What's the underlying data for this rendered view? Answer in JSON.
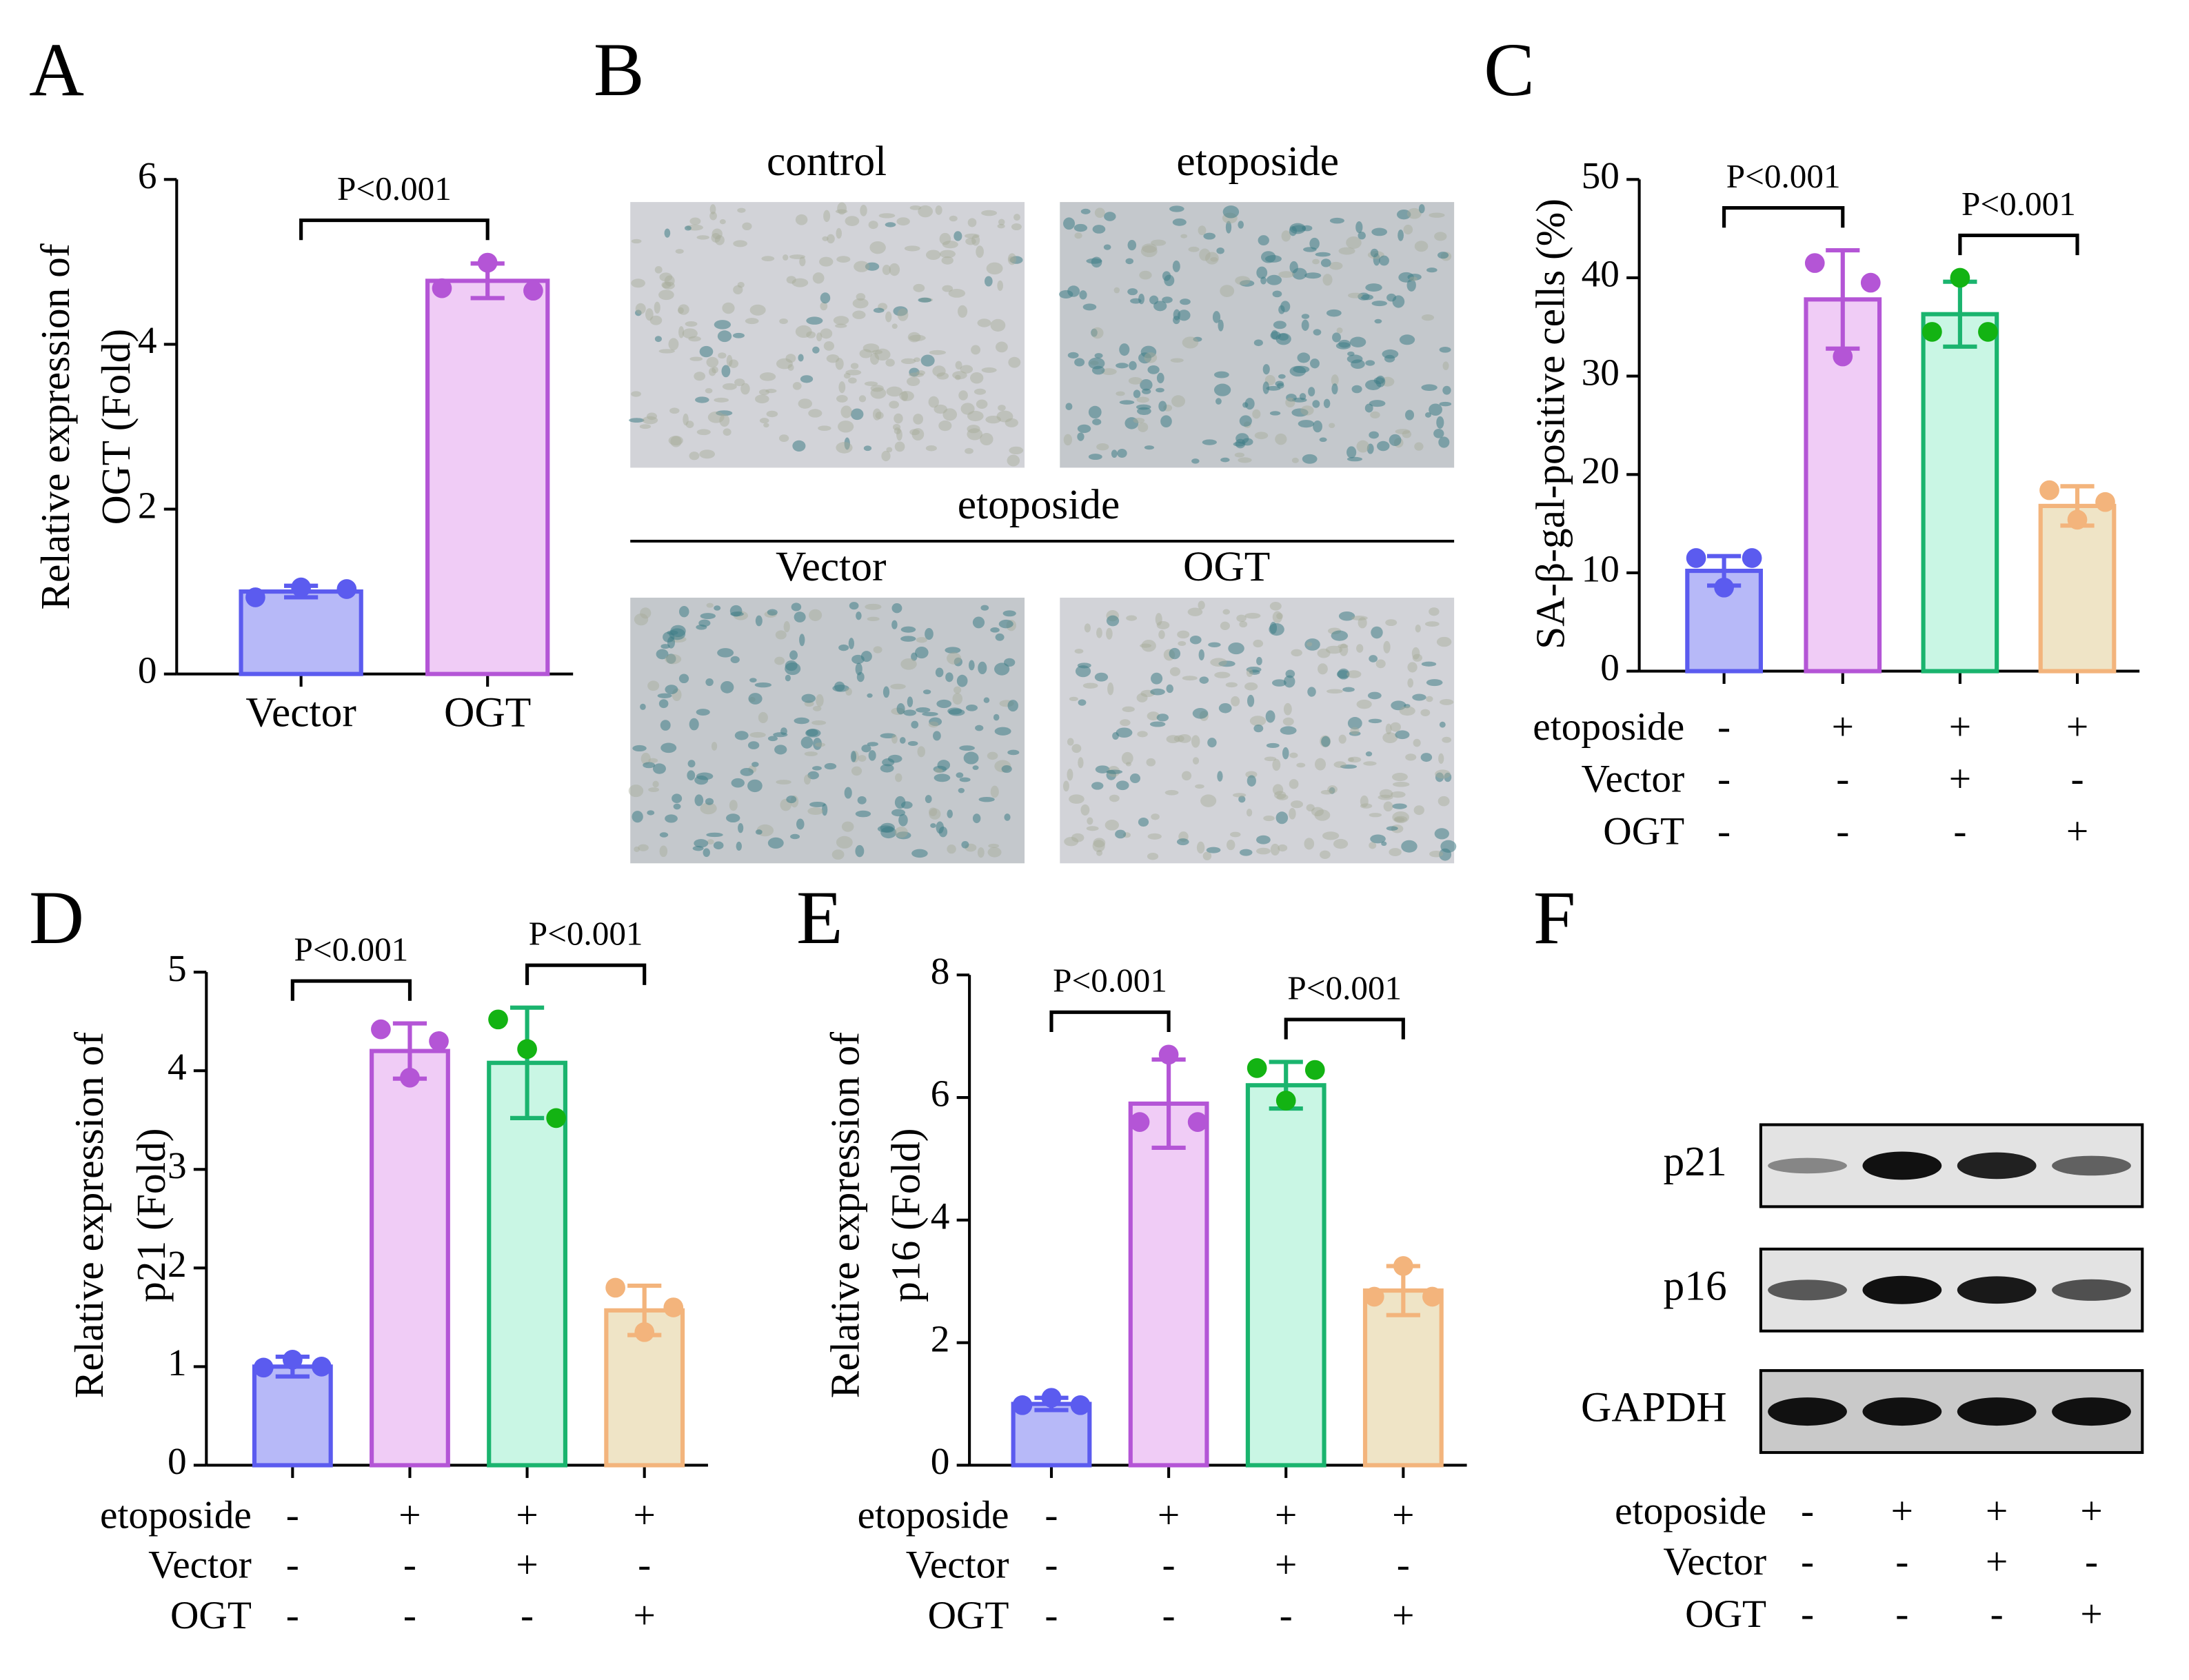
{
  "panel_labels": [
    "A",
    "B",
    "C",
    "D",
    "E",
    "F"
  ],
  "chart_data": [
    {
      "type": "bar",
      "ylabel": [
        "Relative expression of",
        "OGT (Fold)"
      ],
      "categories": [
        "Vector",
        "OGT"
      ],
      "values": [
        1.0,
        4.77
      ],
      "errors": [
        0.07,
        0.21
      ],
      "points": [
        [
          0.93,
          1.05,
          1.03
        ],
        [
          4.68,
          4.99,
          4.65
        ]
      ],
      "colors": {
        "fill": [
          "#b7b9f8",
          "#f0ccf6"
        ],
        "stroke": [
          "#5b5bef",
          "#b455d6"
        ],
        "dot": [
          "#5b5bef",
          "#b455d6"
        ]
      },
      "ylim": [
        0,
        6
      ],
      "yticks": [
        0,
        2,
        4,
        6
      ],
      "annotations": [
        "P<0.001"
      ]
    },
    {
      "type": "bar",
      "ylabel": [
        "SA-β-gal-positive cells (%)"
      ],
      "values": [
        10.2,
        37.8,
        36.3,
        16.8
      ],
      "errors": [
        1.5,
        5.0,
        3.3,
        2.0
      ],
      "points": [
        [
          11.5,
          8.5,
          11.5
        ],
        [
          41.5,
          32.0,
          39.5
        ],
        [
          34.5,
          40.0,
          34.5
        ],
        [
          18.4,
          15.4,
          17.2
        ]
      ],
      "colors": {
        "fill": [
          "#b7b9f8",
          "#f0ccf6",
          "#c9f6e4",
          "#efe4c6"
        ],
        "stroke": [
          "#5b5bef",
          "#b455d6",
          "#1ab46e",
          "#f3b47c"
        ],
        "dot": [
          "#5b5bef",
          "#b455d6",
          "#13b313",
          "#f3b47c"
        ]
      },
      "ylim": [
        0,
        50
      ],
      "yticks": [
        0,
        10,
        20,
        30,
        40,
        50
      ],
      "annotations": [
        "P<0.001",
        "P<0.001"
      ],
      "conditions": [
        {
          "label": "etoposide",
          "values": [
            "-",
            "+",
            "+",
            "+"
          ]
        },
        {
          "label": "Vector",
          "values": [
            "-",
            "-",
            "+",
            "-"
          ]
        },
        {
          "label": "OGT",
          "values": [
            "-",
            "-",
            "-",
            "+"
          ]
        }
      ]
    },
    {
      "type": "bar",
      "ylabel": [
        "Relative expression of",
        "p21 (Fold)"
      ],
      "values": [
        1.0,
        4.2,
        4.08,
        1.57
      ],
      "errors": [
        0.1,
        0.28,
        0.56,
        0.25
      ],
      "points": [
        [
          0.99,
          1.07,
          1.0
        ],
        [
          4.42,
          3.93,
          4.3
        ],
        [
          4.52,
          4.22,
          3.52
        ],
        [
          1.8,
          1.35,
          1.6
        ]
      ],
      "colors": {
        "fill": [
          "#b7b9f8",
          "#f0ccf6",
          "#c9f6e4",
          "#efe4c6"
        ],
        "stroke": [
          "#5b5bef",
          "#b455d6",
          "#1ab46e",
          "#f3b47c"
        ],
        "dot": [
          "#5b5bef",
          "#b455d6",
          "#13b313",
          "#f3b47c"
        ]
      },
      "ylim": [
        0,
        5
      ],
      "yticks": [
        0,
        1,
        2,
        3,
        4,
        5
      ],
      "annotations": [
        "P<0.001",
        "P<0.001"
      ],
      "conditions": [
        {
          "label": "etoposide",
          "values": [
            "-",
            "+",
            "+",
            "+"
          ]
        },
        {
          "label": "Vector",
          "values": [
            "-",
            "-",
            "+",
            "-"
          ]
        },
        {
          "label": "OGT",
          "values": [
            "-",
            "-",
            "-",
            "+"
          ]
        }
      ]
    },
    {
      "type": "bar",
      "ylabel": [
        "Relative expression of",
        "p16 (Fold)"
      ],
      "values": [
        1.0,
        5.9,
        6.2,
        2.85
      ],
      "errors": [
        0.1,
        0.72,
        0.38,
        0.4
      ],
      "points": [
        [
          0.98,
          1.1,
          0.98
        ],
        [
          5.6,
          6.7,
          5.6
        ],
        [
          6.48,
          5.95,
          6.45
        ],
        [
          2.75,
          3.25,
          2.75
        ]
      ],
      "colors": {
        "fill": [
          "#b7b9f8",
          "#f0ccf6",
          "#c9f6e4",
          "#efe4c6"
        ],
        "stroke": [
          "#5b5bef",
          "#b455d6",
          "#1ab46e",
          "#f3b47c"
        ],
        "dot": [
          "#5b5bef",
          "#b455d6",
          "#13b313",
          "#f3b47c"
        ]
      },
      "ylim": [
        0,
        8
      ],
      "yticks": [
        0,
        2,
        4,
        6,
        8
      ],
      "annotations": [
        "P<0.001",
        "P<0.001"
      ],
      "conditions": [
        {
          "label": "etoposide",
          "values": [
            "-",
            "+",
            "+",
            "+"
          ]
        },
        {
          "label": "Vector",
          "values": [
            "-",
            "-",
            "+",
            "-"
          ]
        },
        {
          "label": "OGT",
          "values": [
            "-",
            "-",
            "-",
            "+"
          ]
        }
      ]
    }
  ],
  "micrographs": {
    "top_labels": [
      "control",
      "etoposide"
    ],
    "group_label": "etoposide",
    "bottom_labels": [
      "Vector",
      "OGT"
    ]
  },
  "western_blot": {
    "bands": [
      "p21",
      "p16",
      "GAPDH"
    ],
    "conditions": [
      {
        "label": "etoposide",
        "values": [
          "-",
          "+",
          "+",
          "+"
        ]
      },
      {
        "label": "Vector",
        "values": [
          "-",
          "-",
          "+",
          "-"
        ]
      },
      {
        "label": "OGT",
        "values": [
          "-",
          "-",
          "-",
          "+"
        ]
      }
    ]
  }
}
